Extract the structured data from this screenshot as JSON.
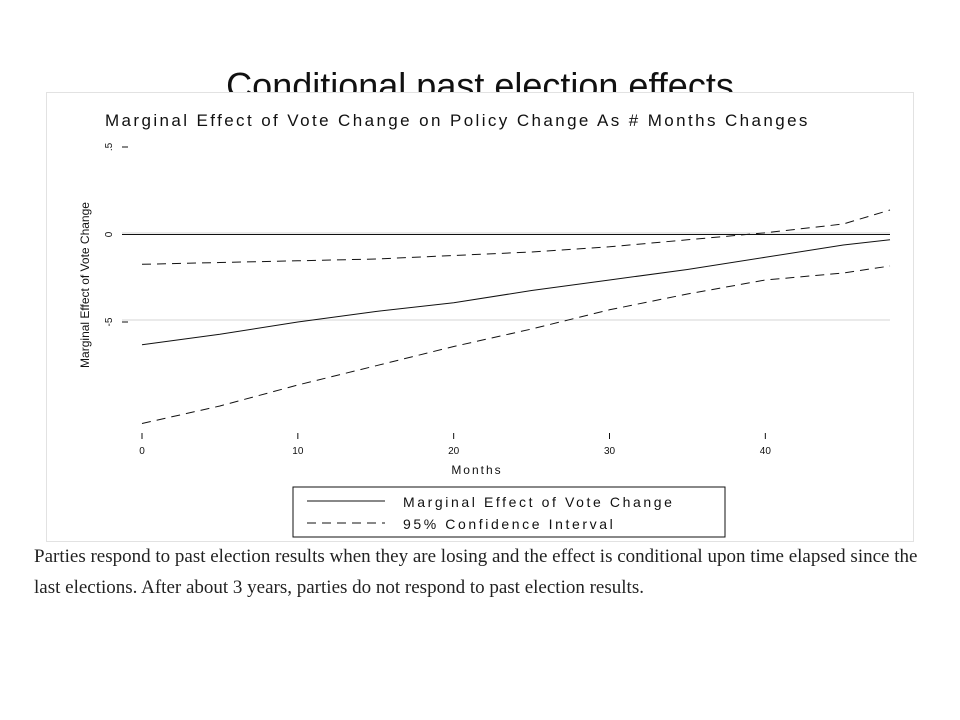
{
  "slide": {
    "title": "Conditional past election effects",
    "caption": "Parties respond to past election results when they are losing and the effect is conditional upon time elapsed since the last elections. After about 3 years, parties do not respond to past election results."
  },
  "chart_data": {
    "type": "line",
    "title": "Marginal Effect of Vote Change on Policy Change As # Months Changes",
    "xlabel": "Months",
    "ylabel": "Marginal Effect of Vote Change",
    "xlim": [
      0,
      48
    ],
    "ylim": [
      -11,
      5
    ],
    "x_ticks": [
      "0",
      "10",
      "20",
      "30",
      "40"
    ],
    "y_ticks": [
      "-5",
      "0",
      ".5"
    ],
    "grid": false,
    "legend_position": "bottom",
    "series": [
      {
        "name": "Marginal Effect of Vote Change",
        "style": "solid",
        "x": [
          0,
          5,
          10,
          15,
          20,
          25,
          30,
          35,
          40,
          45,
          48
        ],
        "y": [
          -6.3,
          -5.7,
          -5.0,
          -4.4,
          -3.9,
          -3.2,
          -2.6,
          -2.0,
          -1.3,
          -0.6,
          -0.3
        ]
      },
      {
        "name": "95% Confidence Interval",
        "style": "dashed",
        "x": [
          0,
          5,
          10,
          15,
          20,
          25,
          30,
          35,
          40,
          45,
          48
        ],
        "y": [
          -1.7,
          -1.6,
          -1.5,
          -1.4,
          -1.2,
          -1.0,
          -0.7,
          -0.3,
          0.1,
          0.6,
          1.4
        ]
      },
      {
        "name": "95% Confidence Interval",
        "style": "dashed",
        "x": [
          0,
          5,
          10,
          15,
          20,
          25,
          30,
          35,
          40,
          45,
          48
        ],
        "y": [
          -10.8,
          -9.8,
          -8.6,
          -7.5,
          -6.4,
          -5.4,
          -4.3,
          -3.4,
          -2.6,
          -2.2,
          -1.8
        ]
      }
    ],
    "zero_line": 0
  },
  "legend": {
    "solid_label": "Marginal Effect of Vote Change",
    "dashed_label": "95% Confidence Interval"
  }
}
